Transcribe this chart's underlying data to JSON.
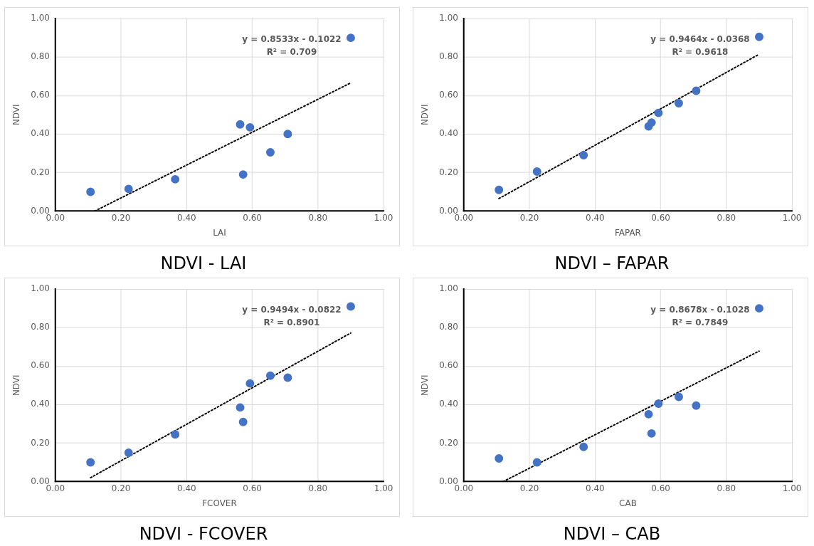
{
  "chart_data": [
    {
      "type": "scatter",
      "title": "NDVI - LAI",
      "xlabel": "LAI",
      "ylabel": "NDVI",
      "xlim": [
        0,
        1
      ],
      "ylim": [
        0,
        1
      ],
      "xticks": [
        {
          "value": 0,
          "label": "0.00"
        },
        {
          "value": 0.2,
          "label": "0.20"
        },
        {
          "value": 0.4,
          "label": "0.40"
        },
        {
          "value": 0.6,
          "label": "0.60"
        },
        {
          "value": 0.8,
          "label": "0.80"
        },
        {
          "value": 1,
          "label": "1.00"
        }
      ],
      "yticks": [
        {
          "value": 0,
          "label": "0.00"
        },
        {
          "value": 0.2,
          "label": "0.20"
        },
        {
          "value": 0.4,
          "label": "0.40"
        },
        {
          "value": 0.6,
          "label": "0.60"
        },
        {
          "value": 0.8,
          "label": "0.80"
        },
        {
          "value": 1,
          "label": "1.00"
        }
      ],
      "grid": true,
      "legend": false,
      "annotations": [
        "y = 0.8533x - 0.1022",
        "R² = 0.709"
      ],
      "series": [
        {
          "type": "scatter",
          "color": "#4472c4",
          "marker": "circle",
          "x": [
            0.107,
            0.223,
            0.365,
            0.563,
            0.572,
            0.593,
            0.655,
            0.708,
            0.9
          ],
          "values": [
            0.1,
            0.115,
            0.165,
            0.45,
            0.19,
            0.435,
            0.305,
            0.4,
            0.9
          ]
        },
        {
          "type": "line",
          "color": "#000000",
          "marker": "none",
          "line_style": "dotted",
          "x": [
            0.12,
            0.9
          ],
          "values": [
            0,
            0.666
          ]
        }
      ]
    },
    {
      "type": "scatter",
      "title": "NDVI – FAPAR",
      "xlabel": "FAPAR",
      "ylabel": "NDVI",
      "xlim": [
        0,
        1
      ],
      "ylim": [
        0,
        1
      ],
      "xticks": [
        {
          "value": 0,
          "label": "0.00"
        },
        {
          "value": 0.2,
          "label": "0.20"
        },
        {
          "value": 0.4,
          "label": "0.40"
        },
        {
          "value": 0.6,
          "label": "0.60"
        },
        {
          "value": 0.8,
          "label": "0.80"
        },
        {
          "value": 1,
          "label": "1.00"
        }
      ],
      "yticks": [
        {
          "value": 0,
          "label": "0.00"
        },
        {
          "value": 0.2,
          "label": "0.20"
        },
        {
          "value": 0.4,
          "label": "0.40"
        },
        {
          "value": 0.6,
          "label": "0.60"
        },
        {
          "value": 0.8,
          "label": "0.80"
        },
        {
          "value": 1,
          "label": "1.00"
        }
      ],
      "grid": true,
      "legend": false,
      "annotations": [
        "y = 0.9464x - 0.0368",
        "R² = 0.9618"
      ],
      "series": [
        {
          "type": "scatter",
          "color": "#4472c4",
          "marker": "circle",
          "x": [
            0.107,
            0.223,
            0.365,
            0.563,
            0.572,
            0.593,
            0.655,
            0.708,
            0.9
          ],
          "values": [
            0.11,
            0.205,
            0.29,
            0.44,
            0.46,
            0.51,
            0.56,
            0.625,
            0.905
          ]
        },
        {
          "type": "line",
          "color": "#000000",
          "marker": "none",
          "line_style": "dotted",
          "x": [
            0.107,
            0.9
          ],
          "values": [
            0.065,
            0.815
          ]
        }
      ]
    },
    {
      "type": "scatter",
      "title": "NDVI - FCOVER",
      "xlabel": "FCOVER",
      "ylabel": "NDVI",
      "xlim": [
        0,
        1
      ],
      "ylim": [
        0,
        1
      ],
      "xticks": [
        {
          "value": 0,
          "label": "0.00"
        },
        {
          "value": 0.2,
          "label": "0.20"
        },
        {
          "value": 0.4,
          "label": "0.40"
        },
        {
          "value": 0.6,
          "label": "0.60"
        },
        {
          "value": 0.8,
          "label": "0.80"
        },
        {
          "value": 1,
          "label": "1.00"
        }
      ],
      "yticks": [
        {
          "value": 0,
          "label": "0.00"
        },
        {
          "value": 0.2,
          "label": "0.20"
        },
        {
          "value": 0.4,
          "label": "0.40"
        },
        {
          "value": 0.6,
          "label": "0.60"
        },
        {
          "value": 0.8,
          "label": "0.80"
        },
        {
          "value": 1,
          "label": "1.00"
        }
      ],
      "grid": true,
      "legend": false,
      "annotations": [
        "y = 0.9494x - 0.0822",
        "R² = 0.8901"
      ],
      "series": [
        {
          "type": "scatter",
          "color": "#4472c4",
          "marker": "circle",
          "x": [
            0.107,
            0.223,
            0.365,
            0.563,
            0.572,
            0.593,
            0.655,
            0.708,
            0.9
          ],
          "values": [
            0.1,
            0.15,
            0.245,
            0.385,
            0.31,
            0.51,
            0.55,
            0.54,
            0.91
          ]
        },
        {
          "type": "line",
          "color": "#000000",
          "marker": "none",
          "line_style": "dotted",
          "x": [
            0.107,
            0.9
          ],
          "values": [
            0.02,
            0.772
          ]
        }
      ]
    },
    {
      "type": "scatter",
      "title": "NDVI – CAB",
      "xlabel": "CAB",
      "ylabel": "NDVI",
      "xlim": [
        0,
        1
      ],
      "ylim": [
        0,
        1
      ],
      "xticks": [
        {
          "value": 0,
          "label": "0.00"
        },
        {
          "value": 0.2,
          "label": "0.20"
        },
        {
          "value": 0.4,
          "label": "0.40"
        },
        {
          "value": 0.6,
          "label": "0.60"
        },
        {
          "value": 0.8,
          "label": "0.80"
        },
        {
          "value": 1,
          "label": "1.00"
        }
      ],
      "yticks": [
        {
          "value": 0,
          "label": "0.00"
        },
        {
          "value": 0.2,
          "label": "0.20"
        },
        {
          "value": 0.4,
          "label": "0.40"
        },
        {
          "value": 0.6,
          "label": "0.60"
        },
        {
          "value": 0.8,
          "label": "0.80"
        },
        {
          "value": 1,
          "label": "1.00"
        }
      ],
      "grid": true,
      "legend": false,
      "annotations": [
        "y = 0.8678x - 0.1028",
        "R² = 0.7849"
      ],
      "series": [
        {
          "type": "scatter",
          "color": "#4472c4",
          "marker": "circle",
          "x": [
            0.107,
            0.223,
            0.365,
            0.563,
            0.572,
            0.593,
            0.655,
            0.708,
            0.9
          ],
          "values": [
            0.12,
            0.1,
            0.18,
            0.35,
            0.25,
            0.405,
            0.44,
            0.395,
            0.9
          ]
        },
        {
          "type": "line",
          "color": "#000000",
          "marker": "none",
          "line_style": "dotted",
          "x": [
            0.12,
            0.9
          ],
          "values": [
            0,
            0.678
          ]
        }
      ]
    }
  ]
}
